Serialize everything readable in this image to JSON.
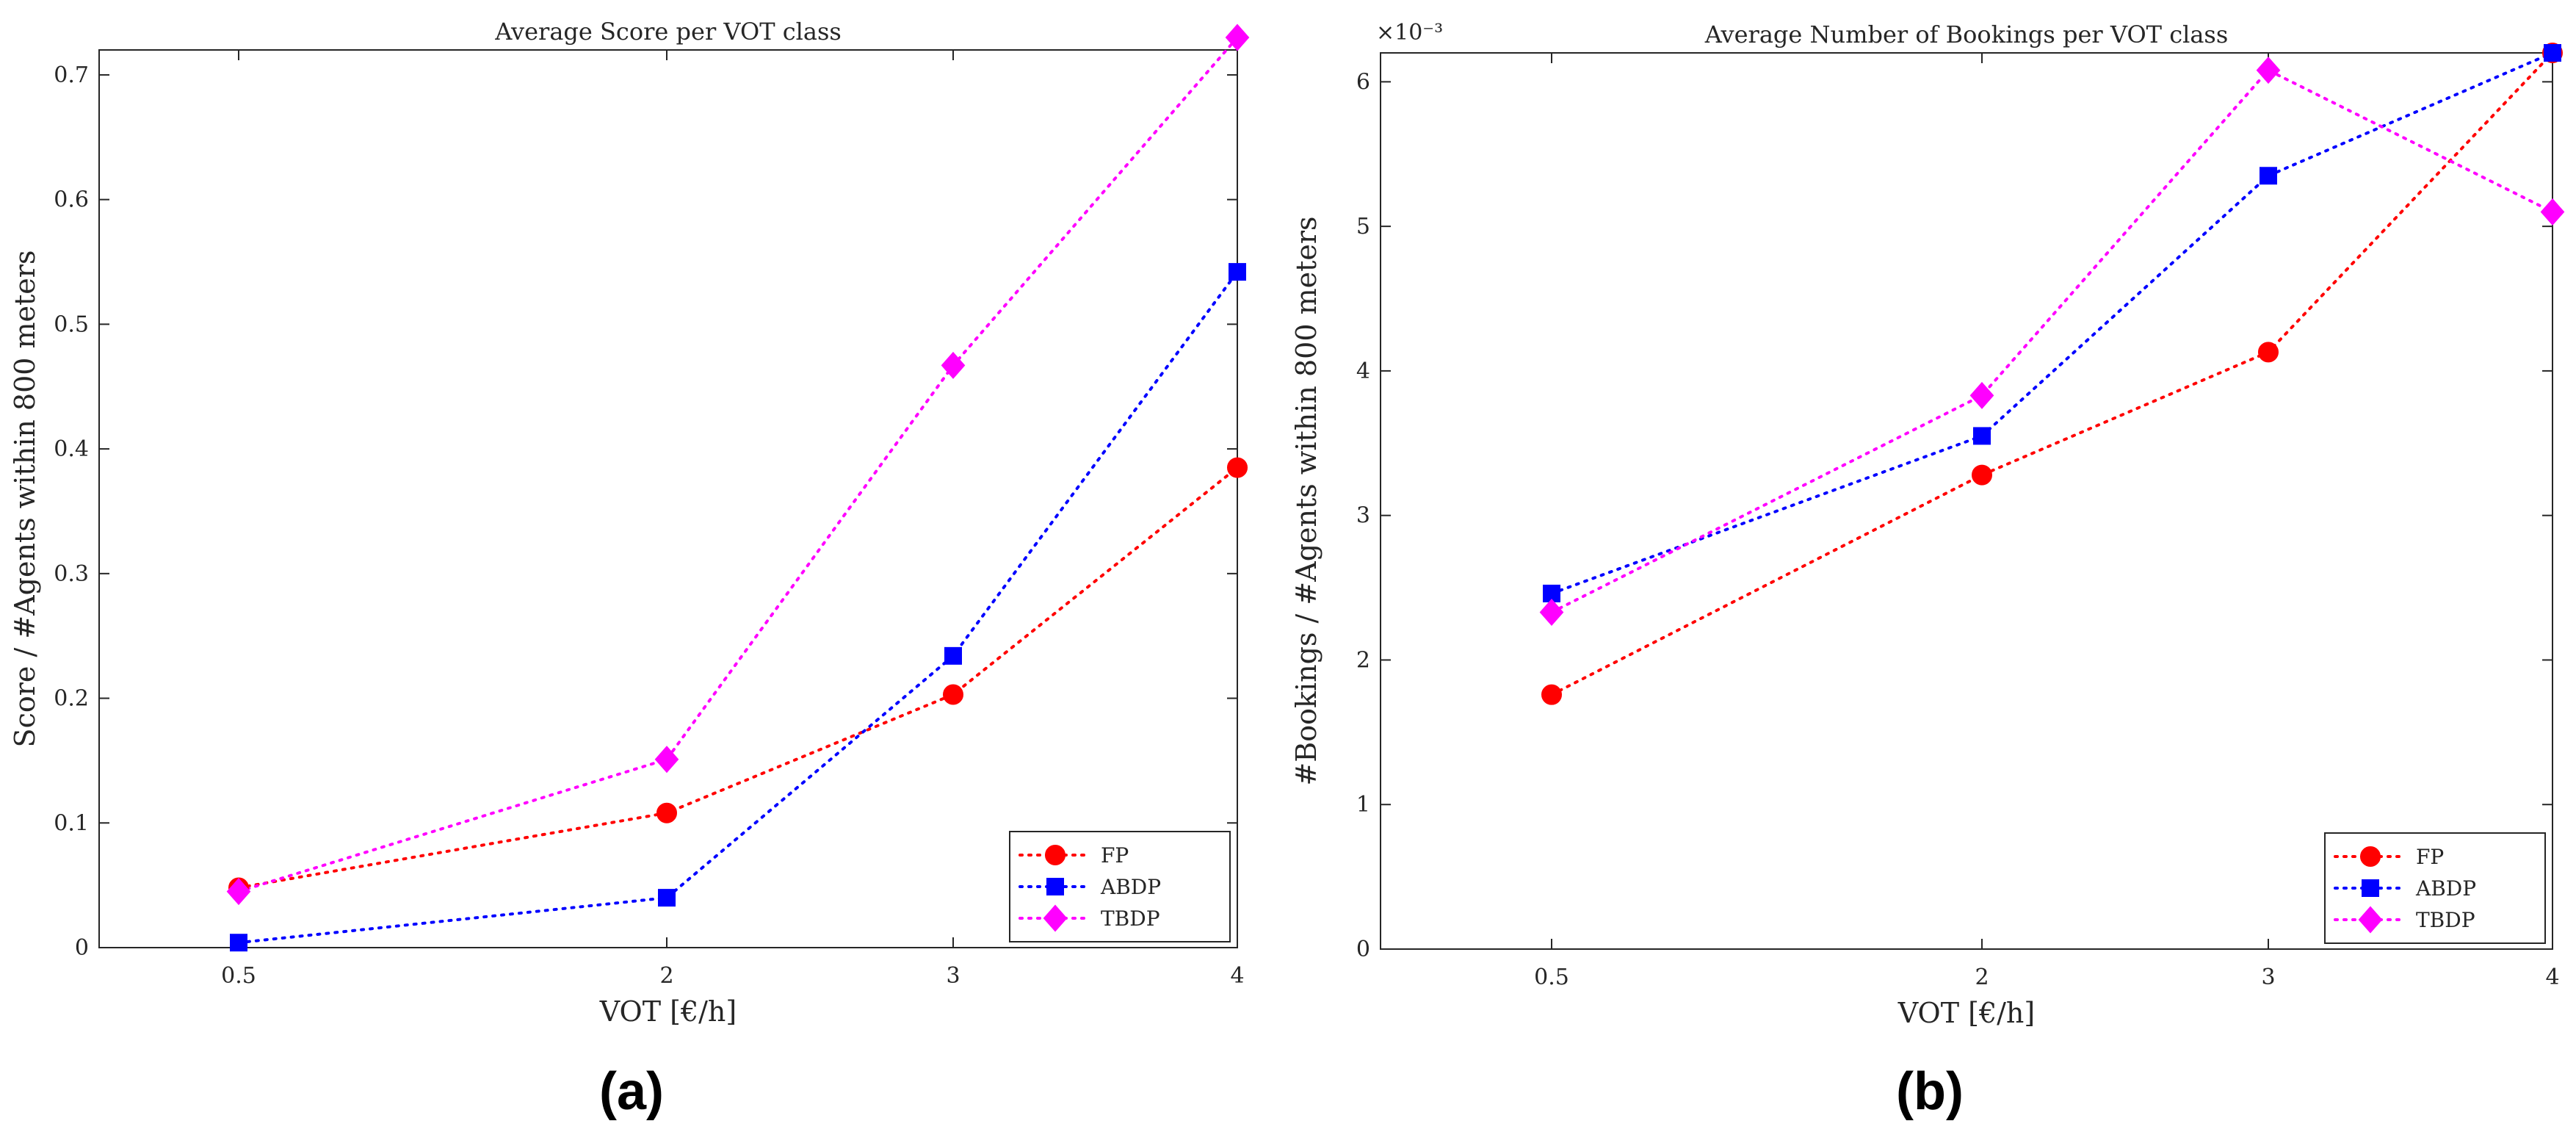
{
  "chart_data": [
    {
      "type": "line",
      "panel_label": "(a)",
      "title": "Average Score per VOT class",
      "xlabel": "VOT [€/h]",
      "ylabel": "Score / #Agents within 800 meters",
      "categories": [
        "0.5",
        "2",
        "3",
        "4"
      ],
      "ylim": [
        0,
        0.72
      ],
      "yticks": [
        0,
        0.1,
        0.2,
        0.3,
        0.4,
        0.5,
        0.6,
        0.7
      ],
      "ytick_labels": [
        "0",
        "0.1",
        "0.2",
        "0.3",
        "0.4",
        "0.5",
        "0.6",
        "0.7"
      ],
      "exponent_label": "",
      "legend_position": "bottom-right",
      "grid": false,
      "series": [
        {
          "name": "FP",
          "color": "#ff0000",
          "marker": "circle",
          "values": [
            0.048,
            0.108,
            0.203,
            0.385
          ]
        },
        {
          "name": "ABDP",
          "color": "#0000ff",
          "marker": "square",
          "values": [
            0.004,
            0.04,
            0.234,
            0.542
          ]
        },
        {
          "name": "TBDP",
          "color": "#ff00ff",
          "marker": "diamond",
          "values": [
            0.045,
            0.151,
            0.467,
            0.73
          ]
        }
      ]
    },
    {
      "type": "line",
      "panel_label": "(b)",
      "title": "Average Number of Bookings per VOT class",
      "xlabel": "VOT [€/h]",
      "ylabel": "#Bookings / #Agents within 800 meters",
      "categories": [
        "0.5",
        "2",
        "3",
        "4"
      ],
      "ylim": [
        0,
        6.2
      ],
      "yticks": [
        0,
        1,
        2,
        3,
        4,
        5,
        6
      ],
      "ytick_labels": [
        "0",
        "1",
        "2",
        "3",
        "4",
        "5",
        "6"
      ],
      "exponent_label": "×10⁻³",
      "legend_position": "bottom-right",
      "grid": false,
      "series": [
        {
          "name": "FP",
          "color": "#ff0000",
          "marker": "circle",
          "values": [
            1.76,
            3.28,
            4.13,
            6.2
          ]
        },
        {
          "name": "ABDP",
          "color": "#0000ff",
          "marker": "square",
          "values": [
            2.46,
            3.55,
            5.35,
            6.2
          ]
        },
        {
          "name": "TBDP",
          "color": "#ff00ff",
          "marker": "diamond",
          "values": [
            2.33,
            3.83,
            6.08,
            5.1
          ]
        }
      ]
    }
  ]
}
